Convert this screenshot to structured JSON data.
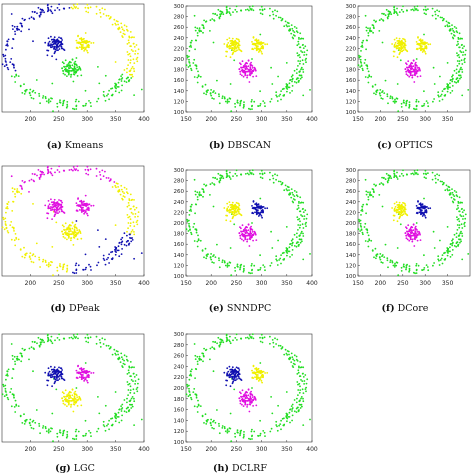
{
  "figure": {
    "axes": {
      "x_ticks": [
        150,
        200,
        250,
        300,
        350,
        400
      ],
      "y_ticks": [
        100,
        120,
        140,
        160,
        180,
        200,
        220,
        240,
        260,
        280,
        300
      ],
      "xlim": [
        150,
        400
      ],
      "ylim": [
        100,
        300
      ]
    },
    "colors": {
      "green": "#22dd22",
      "yellow": "#f0f000",
      "magenta": "#e010e0",
      "blue": "#1010b0"
    },
    "panels": [
      {
        "letter": "(a)",
        "name": "Kmeans",
        "assignment": {
          "ring_left": "blue",
          "ring_top_left": "blue",
          "ring_top_right": "yellow",
          "ring_right": "yellow",
          "ring_bottom": "green",
          "cluster_left": "blue",
          "cluster_right": "yellow",
          "cluster_bottom": "green"
        }
      },
      {
        "letter": "(b)",
        "name": "DBSCAN",
        "assignment": {
          "ring": "green",
          "cluster_left": "yellow",
          "cluster_right": "yellow",
          "cluster_bottom": "magenta"
        }
      },
      {
        "letter": "(c)",
        "name": "OPTICS",
        "assignment": {
          "ring": "green",
          "cluster_left": "yellow",
          "cluster_right": "yellow",
          "cluster_bottom": "magenta"
        }
      },
      {
        "letter": "(d)",
        "name": "DPeak",
        "assignment": {
          "ring_top": "magenta",
          "ring_left": "yellow",
          "ring_right": "yellow",
          "ring_bottom_right": "blue",
          "cluster_left": "magenta",
          "cluster_right": "magenta",
          "cluster_bottom": "yellow"
        }
      },
      {
        "letter": "(e)",
        "name": "SNNDPC",
        "assignment": {
          "ring": "green",
          "cluster_left": "yellow",
          "cluster_right": "blue",
          "cluster_bottom": "magenta"
        }
      },
      {
        "letter": "(f)",
        "name": "DCore",
        "assignment": {
          "ring": "green",
          "cluster_left": "yellow",
          "cluster_right": "blue",
          "cluster_bottom": "magenta"
        }
      },
      {
        "letter": "(g)",
        "name": "LGC",
        "assignment": {
          "ring": "green",
          "cluster_left": "blue",
          "cluster_right": "magenta",
          "cluster_bottom": "yellow"
        }
      },
      {
        "letter": "(h)",
        "name": "DCLRF",
        "assignment": {
          "ring": "green",
          "cluster_left": "blue",
          "cluster_right": "yellow",
          "cluster_bottom": "magenta"
        }
      }
    ]
  },
  "chart_data": [
    {
      "type": "scatter",
      "caption": "(a) Kmeans",
      "xlim": [
        150,
        400
      ],
      "ylim": [
        100,
        300
      ],
      "x_ticks": [
        200,
        250,
        300,
        350,
        400
      ],
      "series": [
        {
          "color": "blue"
        },
        {
          "color": "yellow"
        },
        {
          "color": "green"
        }
      ]
    },
    {
      "type": "scatter",
      "caption": "(b) DBSCAN",
      "xlim": [
        150,
        400
      ],
      "ylim": [
        100,
        300
      ],
      "x_ticks": [
        150,
        200,
        250,
        300,
        350,
        400
      ],
      "y_ticks": [
        100,
        120,
        140,
        160,
        180,
        200,
        220,
        240,
        260,
        280,
        300
      ],
      "series": [
        {
          "color": "green"
        },
        {
          "color": "yellow"
        },
        {
          "color": "magenta"
        }
      ]
    },
    {
      "type": "scatter",
      "caption": "(c) OPTICS",
      "xlim": [
        150,
        400
      ],
      "ylim": [
        100,
        300
      ],
      "x_ticks": [
        150,
        200,
        250,
        300,
        350
      ],
      "y_ticks": [
        100,
        120,
        140,
        160,
        180,
        200,
        220,
        240,
        260,
        280,
        300
      ],
      "series": [
        {
          "color": "green"
        },
        {
          "color": "yellow"
        },
        {
          "color": "magenta"
        }
      ]
    },
    {
      "type": "scatter",
      "caption": "(d) DPeak",
      "xlim": [
        150,
        400
      ],
      "ylim": [
        100,
        300
      ],
      "x_ticks": [
        200,
        250,
        300,
        350,
        400
      ],
      "series": [
        {
          "color": "magenta"
        },
        {
          "color": "yellow"
        },
        {
          "color": "blue"
        }
      ]
    },
    {
      "type": "scatter",
      "caption": "(e) SNNDPC",
      "xlim": [
        150,
        400
      ],
      "ylim": [
        100,
        300
      ],
      "x_ticks": [
        150,
        200,
        250,
        300,
        350,
        400
      ],
      "y_ticks": [
        100,
        120,
        140,
        160,
        180,
        200,
        220,
        240,
        260,
        280,
        300
      ],
      "series": [
        {
          "color": "green"
        },
        {
          "color": "yellow"
        },
        {
          "color": "blue"
        },
        {
          "color": "magenta"
        }
      ]
    },
    {
      "type": "scatter",
      "caption": "(f) DCore",
      "xlim": [
        150,
        400
      ],
      "ylim": [
        100,
        300
      ],
      "x_ticks": [
        150,
        200,
        250,
        300,
        350
      ],
      "y_ticks": [
        100,
        120,
        140,
        160,
        180,
        200,
        220,
        240,
        260,
        280,
        300
      ],
      "series": [
        {
          "color": "green"
        },
        {
          "color": "yellow"
        },
        {
          "color": "blue"
        },
        {
          "color": "magenta"
        }
      ]
    },
    {
      "type": "scatter",
      "caption": "(g) LGC",
      "xlim": [
        150,
        400
      ],
      "ylim": [
        100,
        300
      ],
      "x_ticks": [
        200,
        250,
        300,
        350,
        400
      ],
      "series": [
        {
          "color": "green"
        },
        {
          "color": "blue"
        },
        {
          "color": "magenta"
        },
        {
          "color": "yellow"
        }
      ]
    },
    {
      "type": "scatter",
      "caption": "(h) DCLRF",
      "xlim": [
        150,
        400
      ],
      "ylim": [
        100,
        300
      ],
      "x_ticks": [
        150,
        200,
        250,
        300,
        350,
        400
      ],
      "y_ticks": [
        100,
        120,
        140,
        160,
        180,
        200,
        220,
        240,
        260,
        280,
        300
      ],
      "series": [
        {
          "color": "green"
        },
        {
          "color": "blue"
        },
        {
          "color": "yellow"
        },
        {
          "color": "magenta"
        }
      ]
    }
  ]
}
